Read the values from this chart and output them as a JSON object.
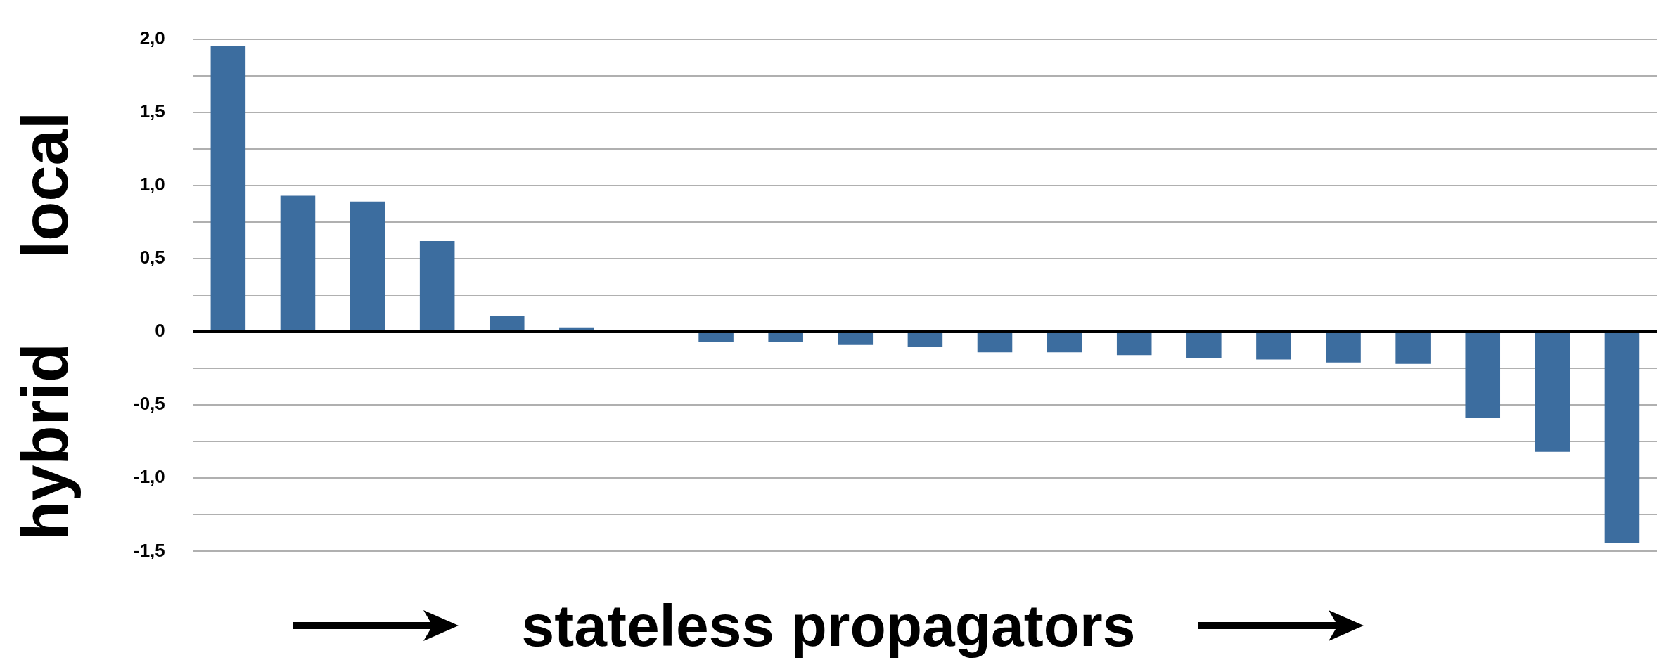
{
  "chart_data": {
    "type": "bar",
    "xlabel": "stateless propagators",
    "annotations": [
      "local",
      "hybrid"
    ],
    "categories": [
      null,
      null,
      null,
      null,
      null,
      null,
      null,
      null,
      null,
      null,
      null,
      null,
      null,
      null,
      null,
      null,
      null,
      null,
      null,
      null,
      null
    ],
    "values": [
      1.95,
      0.93,
      0.89,
      0.62,
      0.11,
      0.03,
      0,
      -0.07,
      -0.07,
      -0.09,
      -0.1,
      -0.14,
      -0.14,
      -0.16,
      -0.18,
      -0.19,
      -0.21,
      -0.22,
      -0.59,
      -0.82,
      -1.44
    ],
    "color": "#3c6d9f",
    "ylim": [
      -1.5,
      2.0
    ],
    "yticks": [
      {
        "value": -1.5,
        "label": "-1,5"
      },
      {
        "value": -1.25,
        "label": null
      },
      {
        "value": -1.0,
        "label": "-1,0"
      },
      {
        "value": -0.75,
        "label": null
      },
      {
        "value": -0.5,
        "label": "-0,5"
      },
      {
        "value": -0.25,
        "label": null
      },
      0,
      {
        "value": 0.25,
        "label": null
      },
      {
        "value": 0.5,
        "label": "0,5"
      },
      {
        "value": 0.75,
        "label": null
      },
      {
        "value": 1.0,
        "label": "1,0"
      },
      {
        "value": 1.25,
        "label": null
      },
      {
        "value": 1.5,
        "label": "1,5"
      },
      {
        "value": 1.75,
        "label": null
      },
      {
        "value": 2.0,
        "label": "2,0"
      }
    ],
    "grid": "y",
    "tick_labels": "y",
    "legend": false
  }
}
